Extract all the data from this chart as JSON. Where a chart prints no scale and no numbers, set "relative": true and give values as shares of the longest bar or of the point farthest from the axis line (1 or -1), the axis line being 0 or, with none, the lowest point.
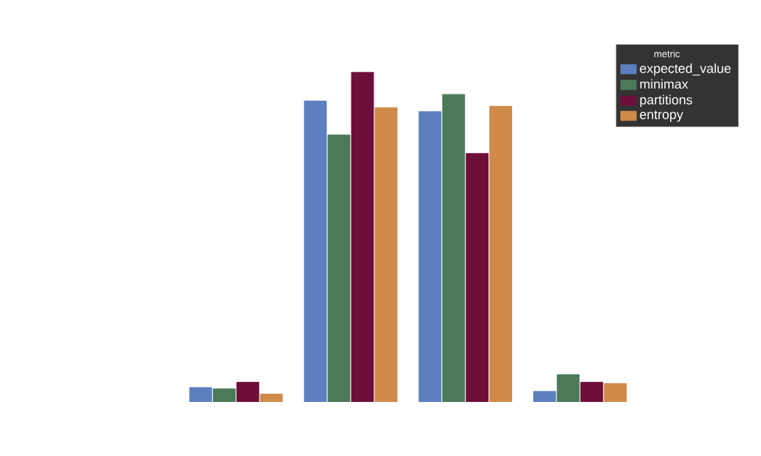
{
  "chart_data": {
    "type": "bar",
    "relative": true,
    "legend_title": "metric",
    "legend": "top right",
    "categories": [
      null,
      null,
      null,
      null
    ],
    "series": [
      {
        "name": "expected_value",
        "color": "#5b7fbf",
        "values": [
          0.044,
          0.913,
          0.881,
          0.032
        ]
      },
      {
        "name": "minimax",
        "color": "#4a7a5a",
        "values": [
          0.04,
          0.81,
          0.933,
          0.083
        ]
      },
      {
        "name": "partitions",
        "color": "#6e0f3a",
        "values": [
          0.06,
          1,
          0.754,
          0.06
        ]
      },
      {
        "name": "entropy",
        "color": "#d08a4a",
        "values": [
          0.024,
          0.893,
          0.897,
          0.056
        ]
      }
    ]
  }
}
